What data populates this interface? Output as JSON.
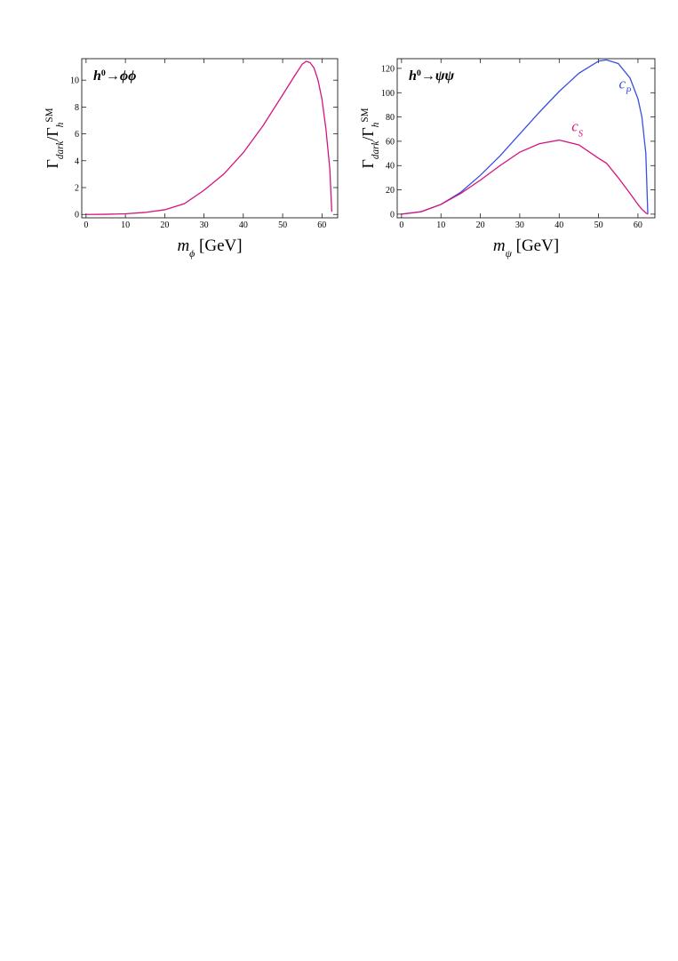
{
  "chart_data": [
    {
      "type": "line",
      "title": [
        {
          "text": "h",
          "style": "italic"
        },
        {
          "text": "0",
          "style": "sup"
        },
        {
          "text": "→"
        },
        {
          "text": "ϕϕ",
          "style": "italic"
        }
      ],
      "xlabel": [
        {
          "text": "m",
          "style": "italic"
        },
        {
          "text": "ϕ",
          "style": "sub"
        },
        {
          "text": " [GeV]"
        }
      ],
      "ylabel": [
        {
          "text": "Γ"
        },
        {
          "text": "dark",
          "style": "sub"
        },
        {
          "text": "/Γ"
        },
        {
          "text": "h",
          "style": "sub"
        },
        {
          "text": "SM",
          "style": "sup"
        }
      ],
      "x": [
        0,
        5,
        10,
        15,
        20,
        25,
        30,
        35,
        40,
        45,
        50,
        53,
        55,
        56,
        57,
        58,
        59,
        60,
        61,
        62,
        62.5
      ],
      "series": [
        {
          "color": "#d4147f",
          "values": [
            0,
            0.01,
            0.05,
            0.15,
            0.35,
            0.8,
            1.8,
            3.0,
            4.6,
            6.6,
            8.9,
            10.3,
            11.2,
            11.4,
            11.3,
            10.9,
            10.0,
            8.6,
            6.4,
            3.4,
            0.2
          ]
        }
      ],
      "xlim": [
        -1.1,
        64
      ],
      "ylim": [
        -0.25,
        11.6
      ],
      "xticks": [
        0,
        10,
        20,
        30,
        40,
        50,
        60
      ],
      "yticks": [
        0,
        2,
        4,
        6,
        8,
        10
      ]
    },
    {
      "type": "line",
      "title": [
        {
          "text": "h",
          "style": "italic"
        },
        {
          "text": "0",
          "style": "sup"
        },
        {
          "text": "→"
        },
        {
          "text": "ψψ",
          "style": "italic"
        }
      ],
      "xlabel": [
        {
          "text": "m",
          "style": "italic"
        },
        {
          "text": "ψ",
          "style": "sub"
        },
        {
          "text": " [GeV]"
        }
      ],
      "ylabel": [
        {
          "text": "Γ"
        },
        {
          "text": "dark",
          "style": "sub"
        },
        {
          "text": "/Γ"
        },
        {
          "text": "h",
          "style": "sub"
        },
        {
          "text": "SM",
          "style": "sup"
        }
      ],
      "x": [
        0,
        5,
        10,
        15,
        20,
        25,
        30,
        35,
        40,
        45,
        50,
        52,
        55,
        58,
        60,
        61,
        62,
        62.5
      ],
      "series": [
        {
          "name": [
            {
              "text": "c",
              "style": "italic"
            },
            {
              "text": "P",
              "style": "sub"
            }
          ],
          "color": "#3a4ee0",
          "values": [
            0,
            2,
            8,
            18,
            32,
            48,
            66,
            84,
            101,
            116,
            126,
            127,
            124,
            112,
            95,
            80,
            50,
            0
          ]
        },
        {
          "name": [
            {
              "text": "c",
              "style": "italic"
            },
            {
              "text": "S",
              "style": "sub"
            }
          ],
          "color": "#d4147f",
          "values": [
            0,
            2,
            8,
            17,
            28,
            40,
            51,
            58,
            61,
            57,
            46,
            42,
            30,
            17,
            8,
            4,
            1,
            0
          ]
        }
      ],
      "xlim": [
        -1.1,
        64.3
      ],
      "ylim": [
        -3,
        128
      ],
      "xticks": [
        0,
        10,
        20,
        30,
        40,
        50,
        60
      ],
      "yticks": [
        0,
        20,
        40,
        60,
        80,
        100,
        120
      ]
    }
  ]
}
